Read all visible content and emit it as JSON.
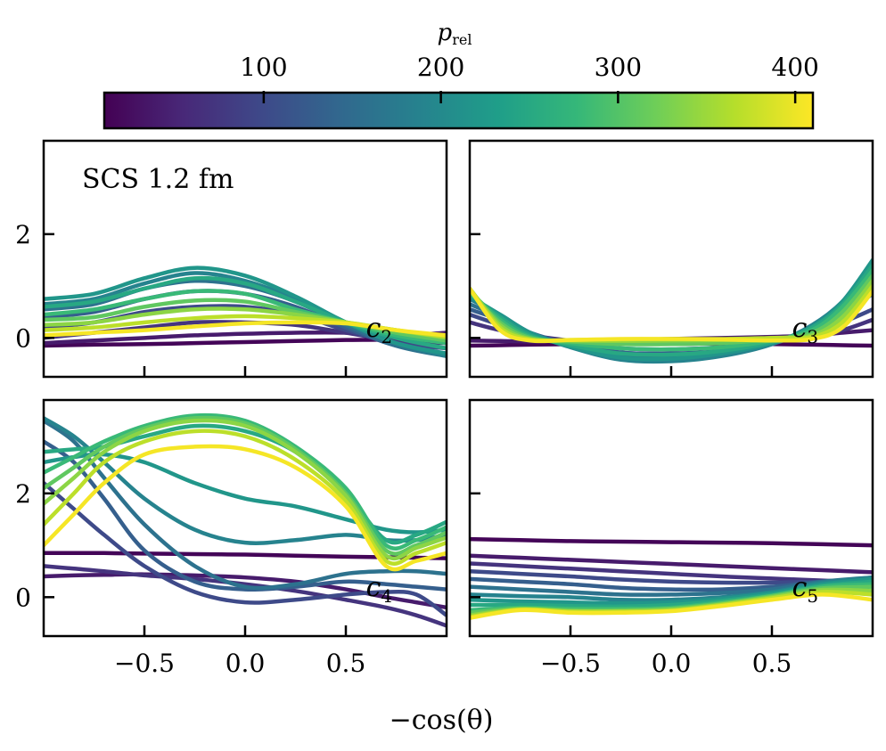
{
  "figure": {
    "xlabel": "−cos(θ)",
    "annotation": "SCS 1.2 fm"
  },
  "colorbar": {
    "label_main": "p",
    "label_sub": "rel",
    "ticks": [
      100,
      200,
      300,
      400
    ],
    "tick_labels": [
      "100",
      "200",
      "300",
      "400"
    ],
    "range": [
      10,
      410
    ],
    "colormap": [
      "#440154",
      "#482878",
      "#3e4989",
      "#31688e",
      "#26828e",
      "#1f9e89",
      "#35b779",
      "#6ece58",
      "#b5de2b",
      "#fde725"
    ]
  },
  "chart_data": [
    {
      "type": "line",
      "panel": "c2",
      "label_main": "c",
      "label_sub": "2",
      "xlim": [
        -1,
        1
      ],
      "ylim": [
        -0.75,
        3.8
      ],
      "xticks": [
        -0.5,
        0.0,
        0.5
      ],
      "xtick_labels": [
        "−0.5",
        "0.0",
        "0.5"
      ],
      "yticks": [
        0,
        2
      ],
      "ytick_labels": [
        "0",
        "2"
      ],
      "show_xticklabels": false,
      "show_yticklabels": true,
      "x": [
        -1,
        -0.75,
        -0.5,
        -0.25,
        0,
        0.25,
        0.5,
        0.75,
        1
      ],
      "series": [
        {
          "p": 15,
          "values": [
            -0.15,
            -0.13,
            -0.12,
            -0.1,
            -0.08,
            -0.06,
            -0.04,
            -0.02,
            0.1
          ]
        },
        {
          "p": 40,
          "values": [
            -0.1,
            -0.05,
            0.0,
            0.05,
            0.08,
            0.1,
            0.1,
            0.05,
            0.1
          ]
        },
        {
          "p": 70,
          "values": [
            0.0,
            0.1,
            0.2,
            0.3,
            0.3,
            0.25,
            0.1,
            -0.05,
            -0.1
          ]
        },
        {
          "p": 100,
          "values": [
            0.2,
            0.3,
            0.5,
            0.6,
            0.6,
            0.45,
            0.15,
            -0.1,
            -0.2
          ]
        },
        {
          "p": 130,
          "values": [
            0.4,
            0.5,
            0.75,
            0.9,
            0.85,
            0.6,
            0.2,
            -0.15,
            -0.3
          ]
        },
        {
          "p": 160,
          "values": [
            0.55,
            0.65,
            0.95,
            1.1,
            1.0,
            0.7,
            0.25,
            -0.15,
            -0.35
          ]
        },
        {
          "p": 190,
          "values": [
            0.65,
            0.75,
            1.05,
            1.25,
            1.1,
            0.75,
            0.3,
            -0.1,
            -0.35
          ]
        },
        {
          "p": 220,
          "values": [
            0.75,
            0.85,
            1.15,
            1.35,
            1.2,
            0.8,
            0.3,
            -0.1,
            -0.3
          ]
        },
        {
          "p": 250,
          "values": [
            0.6,
            0.7,
            0.95,
            1.15,
            1.05,
            0.7,
            0.3,
            0.0,
            -0.2
          ]
        },
        {
          "p": 280,
          "values": [
            0.45,
            0.55,
            0.75,
            0.9,
            0.85,
            0.55,
            0.3,
            0.05,
            -0.1
          ]
        },
        {
          "p": 310,
          "values": [
            0.35,
            0.4,
            0.6,
            0.72,
            0.7,
            0.5,
            0.3,
            0.1,
            -0.05
          ]
        },
        {
          "p": 340,
          "values": [
            0.25,
            0.3,
            0.45,
            0.55,
            0.55,
            0.45,
            0.3,
            0.15,
            0.0
          ]
        },
        {
          "p": 370,
          "values": [
            0.15,
            0.2,
            0.3,
            0.38,
            0.42,
            0.38,
            0.3,
            0.15,
            0.02
          ]
        },
        {
          "p": 405,
          "values": [
            0.05,
            0.1,
            0.15,
            0.22,
            0.28,
            0.3,
            0.28,
            0.15,
            0.05
          ]
        }
      ]
    },
    {
      "type": "line",
      "panel": "c3",
      "label_main": "c",
      "label_sub": "3",
      "xlim": [
        -1,
        1
      ],
      "ylim": [
        -0.75,
        3.8
      ],
      "xticks": [
        -0.5,
        0.0,
        0.5
      ],
      "xtick_labels": [
        "−0.5",
        "0.0",
        "0.5"
      ],
      "yticks": [
        0,
        2
      ],
      "ytick_labels": [
        "0",
        "2"
      ],
      "show_xticklabels": false,
      "show_yticklabels": false,
      "x": [
        -1,
        -0.85,
        -0.7,
        -0.5,
        -0.25,
        0,
        0.25,
        0.5,
        0.7,
        0.85,
        1
      ],
      "series": [
        {
          "p": 15,
          "values": [
            -0.15,
            -0.14,
            -0.13,
            -0.12,
            -0.11,
            -0.1,
            -0.11,
            -0.12,
            -0.13,
            -0.14,
            -0.15
          ]
        },
        {
          "p": 40,
          "values": [
            -0.05,
            -0.06,
            -0.07,
            -0.06,
            -0.04,
            -0.02,
            0.0,
            0.02,
            0.05,
            0.1,
            0.15
          ]
        },
        {
          "p": 70,
          "values": [
            0.3,
            0.15,
            0.05,
            -0.05,
            -0.1,
            -0.12,
            -0.1,
            -0.05,
            0.05,
            0.15,
            0.35
          ]
        },
        {
          "p": 100,
          "values": [
            0.45,
            0.25,
            0.05,
            -0.1,
            -0.2,
            -0.22,
            -0.18,
            -0.08,
            0.1,
            0.3,
            0.55
          ]
        },
        {
          "p": 130,
          "values": [
            0.55,
            0.35,
            0.1,
            -0.12,
            -0.28,
            -0.3,
            -0.25,
            -0.1,
            0.15,
            0.45,
            0.85
          ]
        },
        {
          "p": 160,
          "values": [
            0.65,
            0.4,
            0.1,
            -0.15,
            -0.35,
            -0.38,
            -0.3,
            -0.12,
            0.2,
            0.6,
            1.2
          ]
        },
        {
          "p": 190,
          "values": [
            0.75,
            0.45,
            0.1,
            -0.18,
            -0.42,
            -0.45,
            -0.35,
            -0.12,
            0.25,
            0.7,
            1.4
          ]
        },
        {
          "p": 220,
          "values": [
            0.8,
            0.45,
            0.1,
            -0.17,
            -0.38,
            -0.4,
            -0.3,
            -0.1,
            0.22,
            0.7,
            1.5
          ]
        },
        {
          "p": 250,
          "values": [
            0.85,
            0.4,
            0.05,
            -0.14,
            -0.3,
            -0.32,
            -0.25,
            -0.08,
            0.2,
            0.65,
            1.4
          ]
        },
        {
          "p": 280,
          "values": [
            0.9,
            0.35,
            0.02,
            -0.1,
            -0.2,
            -0.22,
            -0.18,
            -0.05,
            0.15,
            0.6,
            1.3
          ]
        },
        {
          "p": 310,
          "values": [
            0.9,
            0.3,
            0.0,
            -0.07,
            -0.12,
            -0.12,
            -0.1,
            -0.02,
            0.1,
            0.5,
            1.2
          ]
        },
        {
          "p": 340,
          "values": [
            0.95,
            0.25,
            -0.02,
            -0.05,
            -0.06,
            -0.05,
            -0.04,
            0.0,
            0.05,
            0.4,
            1.1
          ]
        },
        {
          "p": 370,
          "values": [
            0.95,
            0.2,
            -0.03,
            -0.04,
            -0.03,
            -0.02,
            -0.02,
            0.0,
            0.02,
            0.3,
            1.0
          ]
        },
        {
          "p": 405,
          "values": [
            0.95,
            0.15,
            -0.05,
            -0.04,
            -0.02,
            -0.02,
            -0.03,
            -0.05,
            -0.02,
            0.2,
            0.9
          ]
        }
      ]
    },
    {
      "type": "line",
      "panel": "c4",
      "label_main": "c",
      "label_sub": "4",
      "xlim": [
        -1,
        1
      ],
      "ylim": [
        -0.75,
        3.8
      ],
      "xticks": [
        -0.5,
        0.0,
        0.5
      ],
      "xtick_labels": [
        "−0.5",
        "0.0",
        "0.5"
      ],
      "yticks": [
        0,
        2
      ],
      "ytick_labels": [
        "0",
        "2"
      ],
      "show_xticklabels": true,
      "show_yticklabels": true,
      "x": [
        -1,
        -0.85,
        -0.7,
        -0.5,
        -0.25,
        0,
        0.25,
        0.5,
        0.7,
        0.85,
        1
      ],
      "series": [
        {
          "p": 15,
          "values": [
            0.85,
            0.85,
            0.85,
            0.84,
            0.83,
            0.82,
            0.8,
            0.78,
            0.77,
            0.76,
            0.75
          ]
        },
        {
          "p": 40,
          "values": [
            0.4,
            0.42,
            0.43,
            0.44,
            0.42,
            0.38,
            0.3,
            0.15,
            0.0,
            -0.1,
            -0.2
          ]
        },
        {
          "p": 70,
          "values": [
            0.6,
            0.55,
            0.5,
            0.42,
            0.35,
            0.25,
            0.12,
            -0.05,
            -0.2,
            -0.35,
            -0.55
          ]
        },
        {
          "p": 100,
          "values": [
            2.2,
            1.7,
            1.2,
            0.6,
            0.1,
            -0.1,
            -0.05,
            0.05,
            0.1,
            0.05,
            -0.35
          ]
        },
        {
          "p": 130,
          "values": [
            3.0,
            2.6,
            1.9,
            0.9,
            0.3,
            0.15,
            0.2,
            0.3,
            0.25,
            0.2,
            0.15
          ]
        },
        {
          "p": 160,
          "values": [
            3.4,
            3.0,
            2.3,
            1.4,
            0.6,
            0.2,
            0.25,
            0.45,
            0.5,
            0.5,
            0.45
          ]
        },
        {
          "p": 190,
          "values": [
            3.45,
            3.1,
            2.6,
            1.9,
            1.3,
            1.05,
            1.1,
            1.2,
            1.1,
            1.1,
            1.2
          ]
        },
        {
          "p": 220,
          "values": [
            2.6,
            2.7,
            2.75,
            2.6,
            2.2,
            1.9,
            1.75,
            1.5,
            1.3,
            1.25,
            1.3
          ]
        },
        {
          "p": 250,
          "values": [
            2.8,
            2.85,
            2.9,
            3.1,
            3.3,
            3.2,
            2.8,
            2.0,
            1.1,
            1.2,
            1.45
          ]
        },
        {
          "p": 280,
          "values": [
            2.4,
            2.7,
            3.0,
            3.3,
            3.5,
            3.4,
            2.9,
            2.1,
            1.0,
            1.1,
            1.35
          ]
        },
        {
          "p": 310,
          "values": [
            2.1,
            2.5,
            2.9,
            3.25,
            3.45,
            3.35,
            2.85,
            2.0,
            0.9,
            1.0,
            1.25
          ]
        },
        {
          "p": 340,
          "values": [
            1.8,
            2.3,
            2.8,
            3.2,
            3.4,
            3.3,
            2.8,
            1.95,
            0.8,
            0.95,
            1.15
          ]
        },
        {
          "p": 370,
          "values": [
            1.4,
            2.0,
            2.6,
            3.0,
            3.2,
            3.1,
            2.65,
            1.85,
            0.7,
            0.85,
            1.05
          ]
        },
        {
          "p": 405,
          "values": [
            1.0,
            1.6,
            2.2,
            2.75,
            2.9,
            2.85,
            2.5,
            1.75,
            0.6,
            0.7,
            0.85
          ]
        }
      ]
    },
    {
      "type": "line",
      "panel": "c5",
      "label_main": "c",
      "label_sub": "5",
      "xlim": [
        -1,
        1
      ],
      "ylim": [
        -0.75,
        3.8
      ],
      "xticks": [
        -0.5,
        0.0,
        0.5
      ],
      "xtick_labels": [
        "−0.5",
        "0.0",
        "0.5"
      ],
      "yticks": [
        0,
        2
      ],
      "ytick_labels": [
        "0",
        "2"
      ],
      "show_xticklabels": true,
      "show_yticklabels": false,
      "x": [
        -1,
        -0.75,
        -0.5,
        -0.25,
        0,
        0.25,
        0.5,
        0.75,
        1
      ],
      "series": [
        {
          "p": 15,
          "values": [
            1.12,
            1.1,
            1.08,
            1.07,
            1.06,
            1.05,
            1.04,
            1.02,
            1.0
          ]
        },
        {
          "p": 40,
          "values": [
            0.8,
            0.76,
            0.72,
            0.68,
            0.64,
            0.6,
            0.56,
            0.52,
            0.48
          ]
        },
        {
          "p": 70,
          "values": [
            0.65,
            0.6,
            0.55,
            0.5,
            0.45,
            0.4,
            0.36,
            0.32,
            0.28
          ]
        },
        {
          "p": 100,
          "values": [
            0.5,
            0.45,
            0.4,
            0.34,
            0.3,
            0.28,
            0.28,
            0.3,
            0.3
          ]
        },
        {
          "p": 130,
          "values": [
            0.35,
            0.3,
            0.25,
            0.18,
            0.15,
            0.15,
            0.2,
            0.3,
            0.35
          ]
        },
        {
          "p": 160,
          "values": [
            0.2,
            0.15,
            0.1,
            0.05,
            0.05,
            0.08,
            0.15,
            0.3,
            0.38
          ]
        },
        {
          "p": 190,
          "values": [
            0.05,
            0.02,
            0.0,
            -0.05,
            -0.05,
            0.0,
            0.1,
            0.28,
            0.38
          ]
        },
        {
          "p": 220,
          "values": [
            -0.05,
            -0.08,
            -0.1,
            -0.12,
            -0.1,
            -0.03,
            0.08,
            0.25,
            0.35
          ]
        },
        {
          "p": 250,
          "values": [
            -0.15,
            -0.15,
            -0.17,
            -0.18,
            -0.15,
            -0.07,
            0.05,
            0.22,
            0.3
          ]
        },
        {
          "p": 280,
          "values": [
            -0.25,
            -0.2,
            -0.22,
            -0.22,
            -0.2,
            -0.1,
            0.03,
            0.2,
            0.25
          ]
        },
        {
          "p": 310,
          "values": [
            -0.3,
            -0.22,
            -0.25,
            -0.25,
            -0.22,
            -0.12,
            0.02,
            0.17,
            0.2
          ]
        },
        {
          "p": 340,
          "values": [
            -0.35,
            -0.23,
            -0.27,
            -0.27,
            -0.24,
            -0.14,
            0.0,
            0.14,
            0.12
          ]
        },
        {
          "p": 370,
          "values": [
            -0.38,
            -0.24,
            -0.28,
            -0.28,
            -0.26,
            -0.15,
            -0.02,
            0.1,
            0.05
          ]
        },
        {
          "p": 405,
          "values": [
            -0.4,
            -0.25,
            -0.3,
            -0.3,
            -0.27,
            -0.17,
            -0.05,
            0.05,
            -0.05
          ]
        }
      ]
    }
  ]
}
